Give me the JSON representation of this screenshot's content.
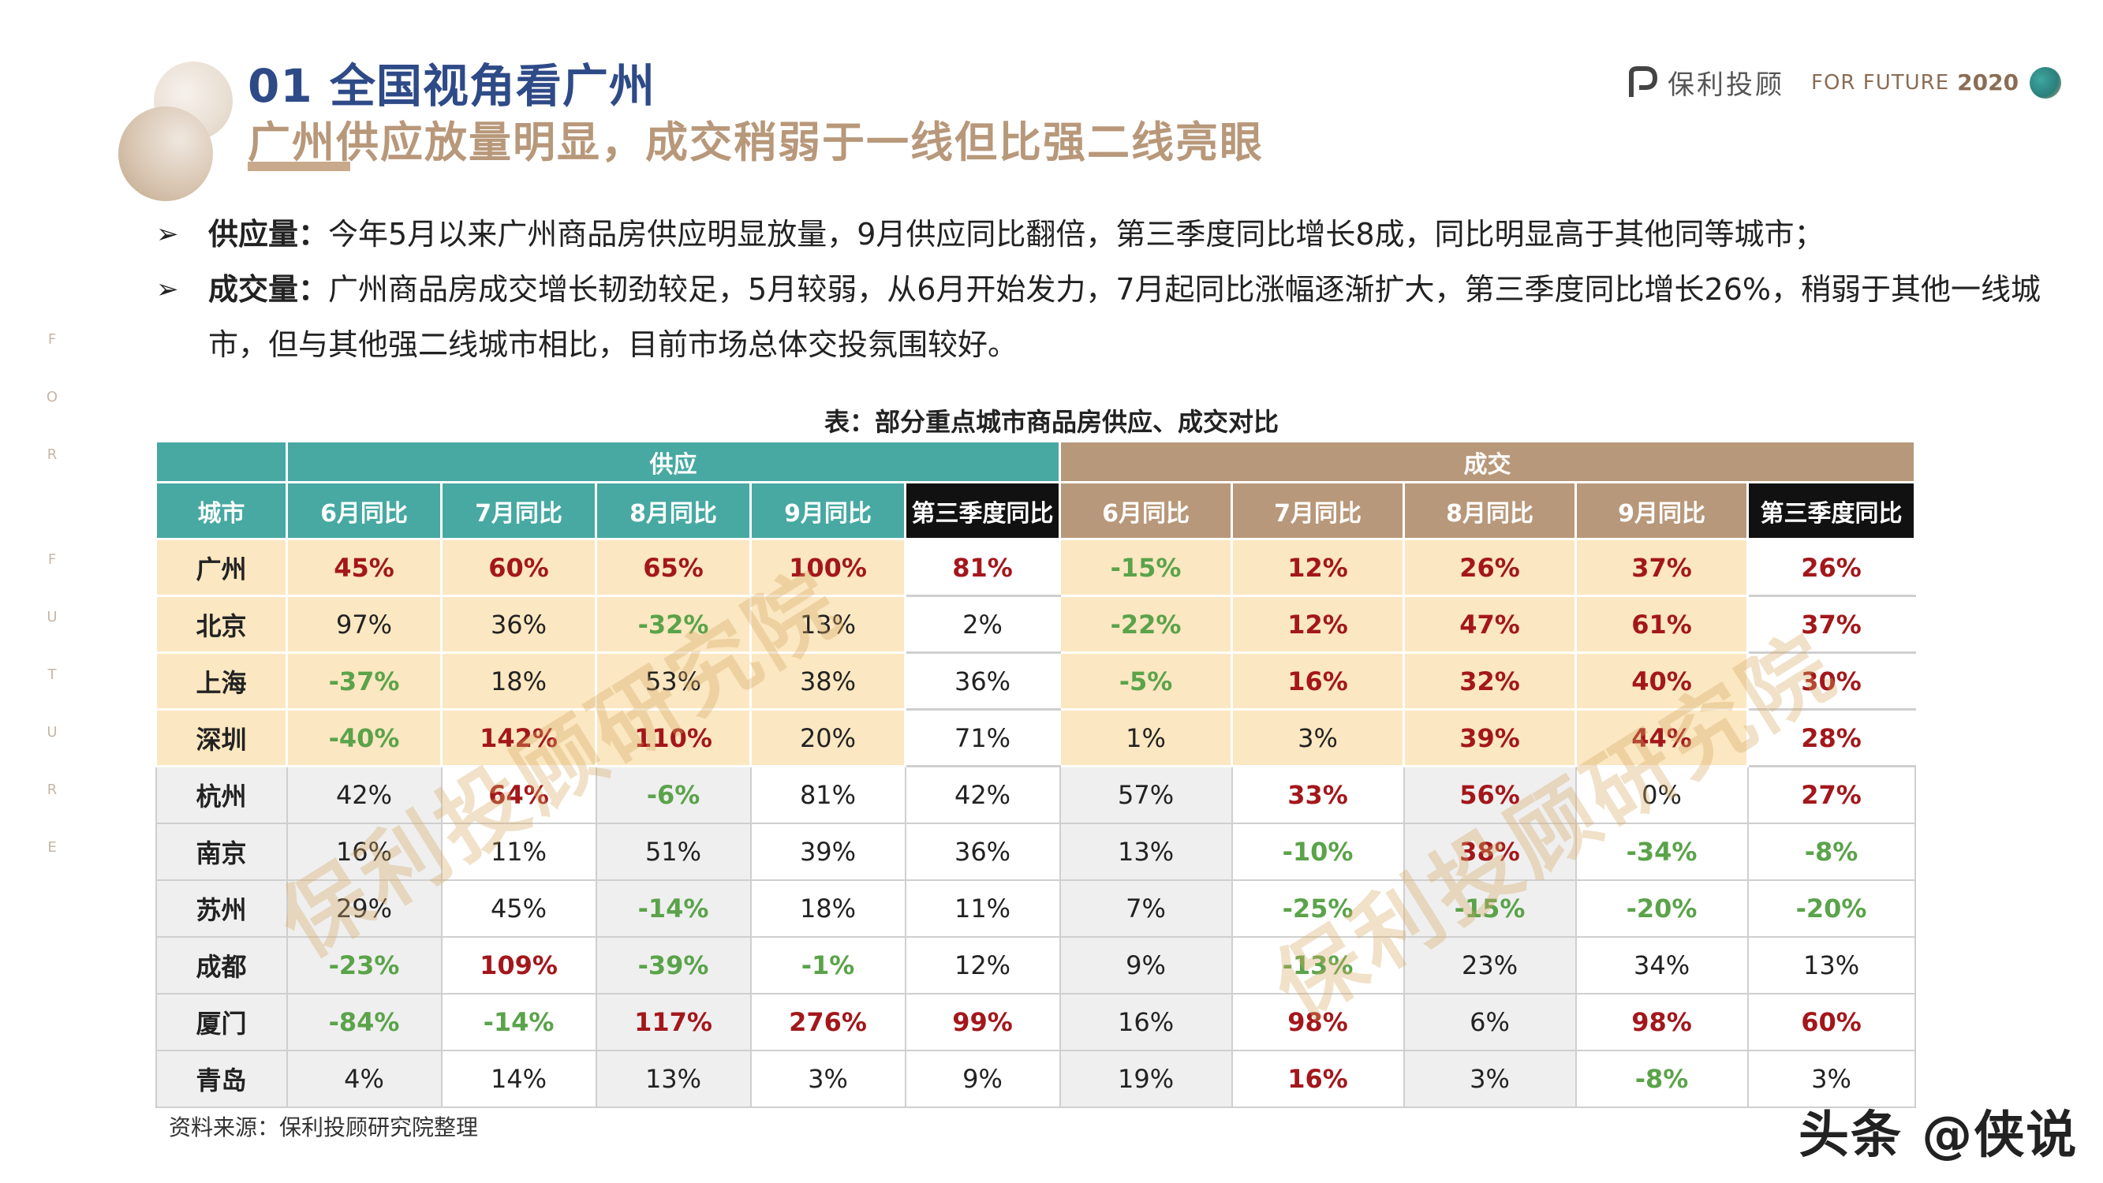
{
  "header": {
    "section_title": "01 全国视角看广州",
    "subtitle": "广州供应放量明显，成交稍弱于一线但比强二线亮眼"
  },
  "logo": {
    "brand": "保利投顾",
    "tagline": "FOR FUTURE",
    "year": "2020"
  },
  "side_letters": [
    "F",
    "O",
    "R",
    "F",
    "U",
    "T",
    "U",
    "R",
    "E"
  ],
  "bullets": [
    {
      "marker": "➢",
      "key": "供应量：",
      "text": "今年5月以来广州商品房供应明显放量，9月供应同比翻倍，第三季度同比增长8成，同比明显高于其他同等城市；"
    },
    {
      "marker": "➢",
      "key": "成交量：",
      "text": "广州商品房成交增长韧劲较足，5月较弱，从6月开始发力，7月起同比涨幅逐渐扩大，第三季度同比增长26%，稍弱于其他一线城市，但与其他强二线城市相比，目前市场总体交投氛围较好。"
    }
  ],
  "table": {
    "caption": "表：部分重点城市商品房供应、成交对比",
    "group_supply": "供应",
    "group_deal": "成交",
    "city_header": "城市",
    "columns": [
      "6月同比",
      "7月同比",
      "8月同比",
      "9月同比",
      "第三季度同比",
      "6月同比",
      "7月同比",
      "8月同比",
      "9月同比",
      "第三季度同比"
    ],
    "rows": [
      {
        "city": "广州",
        "values": [
          "45%",
          "60%",
          "65%",
          "100%",
          "81%",
          "-15%",
          "12%",
          "26%",
          "37%",
          "26%"
        ]
      },
      {
        "city": "北京",
        "values": [
          "97%",
          "36%",
          "-32%",
          "13%",
          "2%",
          "-22%",
          "12%",
          "47%",
          "61%",
          "37%"
        ]
      },
      {
        "city": "上海",
        "values": [
          "-37%",
          "18%",
          "53%",
          "38%",
          "36%",
          "-5%",
          "16%",
          "32%",
          "40%",
          "30%"
        ]
      },
      {
        "city": "深圳",
        "values": [
          "-40%",
          "142%",
          "110%",
          "20%",
          "71%",
          "1%",
          "3%",
          "39%",
          "44%",
          "28%"
        ]
      },
      {
        "city": "杭州",
        "values": [
          "42%",
          "64%",
          "-6%",
          "81%",
          "42%",
          "57%",
          "33%",
          "56%",
          "0%",
          "27%"
        ]
      },
      {
        "city": "南京",
        "values": [
          "16%",
          "11%",
          "51%",
          "39%",
          "36%",
          "13%",
          "-10%",
          "38%",
          "-34%",
          "-8%"
        ]
      },
      {
        "city": "苏州",
        "values": [
          "29%",
          "45%",
          "-14%",
          "18%",
          "11%",
          "7%",
          "-25%",
          "-15%",
          "-20%",
          "-20%"
        ]
      },
      {
        "city": "成都",
        "values": [
          "-23%",
          "109%",
          "-39%",
          "-1%",
          "12%",
          "9%",
          "-13%",
          "23%",
          "34%",
          "13%"
        ]
      },
      {
        "city": "厦门",
        "values": [
          "-84%",
          "-14%",
          "117%",
          "276%",
          "99%",
          "16%",
          "98%",
          "6%",
          "98%",
          "60%"
        ]
      },
      {
        "city": "青岛",
        "values": [
          "4%",
          "14%",
          "13%",
          "3%",
          "9%",
          "19%",
          "16%",
          "3%",
          "-8%",
          "3%"
        ]
      }
    ]
  },
  "watermark": "保利投顾研究院",
  "source_note": "资料来源：保利投顾研究院整理",
  "corner_tag": "头条 @侠说",
  "colors": {
    "title_blue": "#2e4a87",
    "subtitle_tan": "#b8987a",
    "header_teal": "#47a9a2",
    "header_tan": "#b8987a",
    "highlight_yellow": "#fbe7c1",
    "value_red": "#a3171b",
    "value_green": "#5aa34a"
  }
}
